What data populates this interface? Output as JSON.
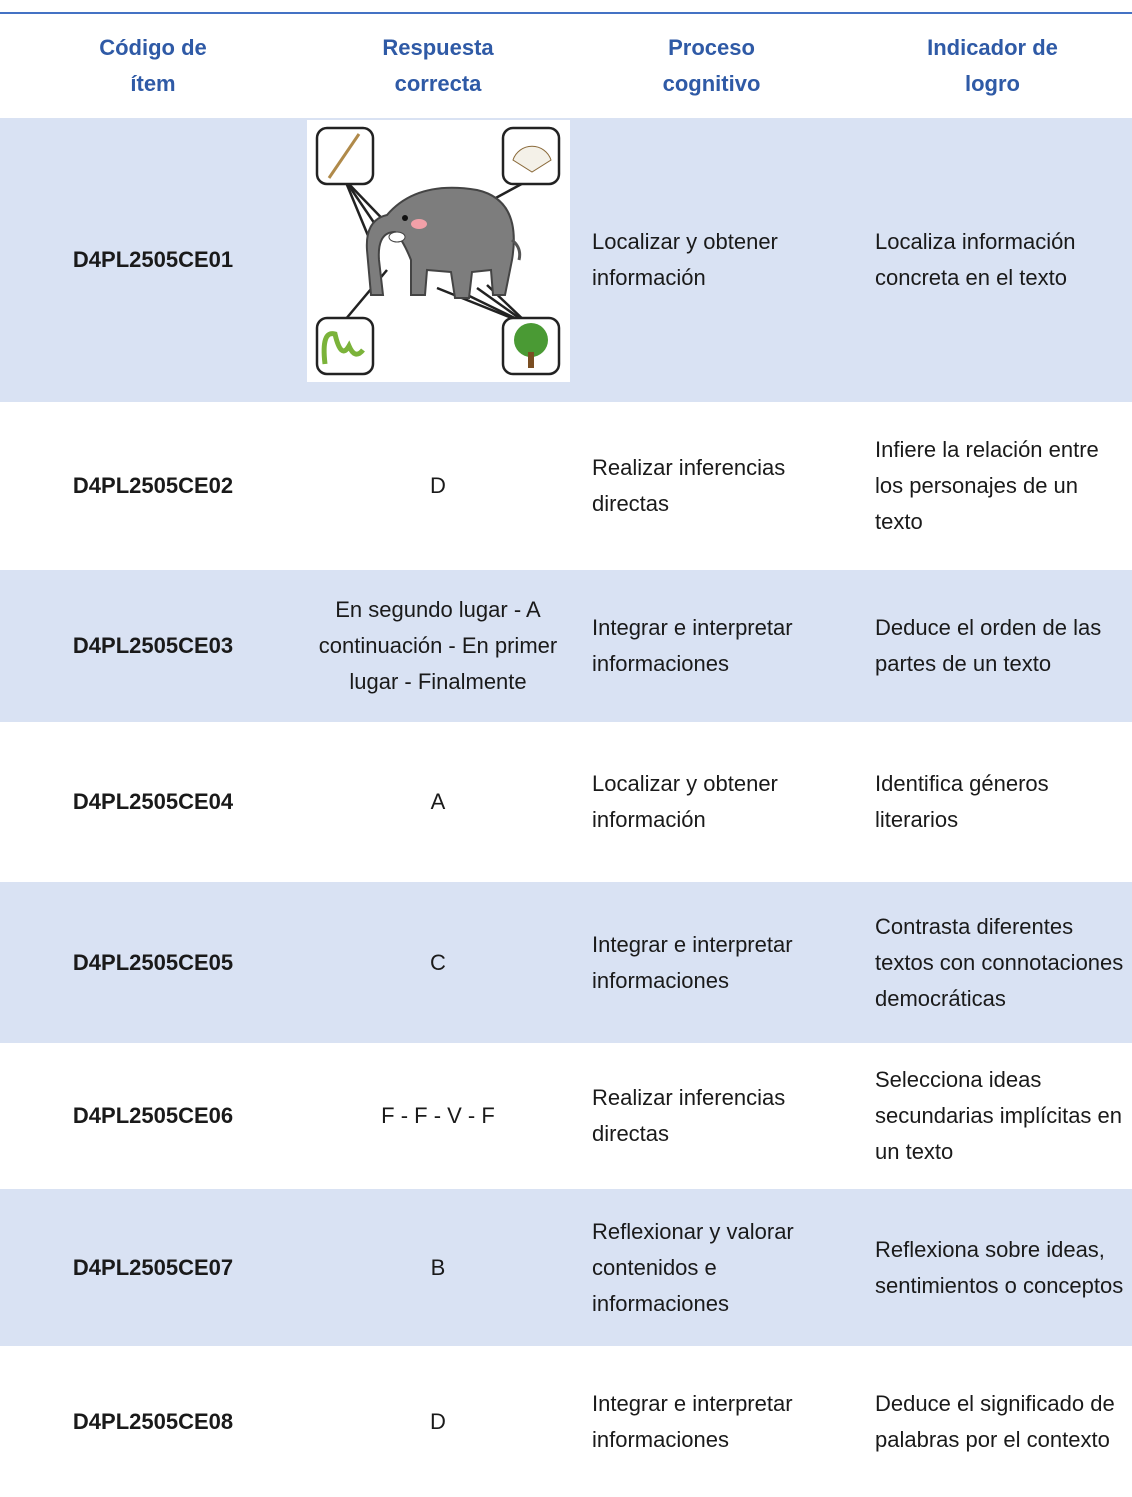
{
  "header": {
    "columns": [
      "Código de ítem",
      "Respuesta correcta",
      "Proceso cognitivo",
      "Indicador de logro"
    ]
  },
  "table": {
    "rows": [
      {
        "code": "D4PL2505CE01",
        "process": "Localizar y obtener información",
        "indicator": "Localiza información concreta en el texto"
      },
      {
        "code": "D4PL2505CE02",
        "answer": "D",
        "process": "Realizar inferencias directas",
        "indicator": "Infiere la relación entre los personajes de un texto"
      },
      {
        "code": "D4PL2505CE03",
        "answer": "En segundo lugar - A continuación - En primer lugar - Finalmente",
        "process": "Integrar e interpretar informaciones",
        "indicator": "Deduce el orden de las partes de un texto"
      },
      {
        "code": "D4PL2505CE04",
        "answer": "A",
        "process": "Localizar y obtener información",
        "indicator": "Identifica géneros literarios"
      },
      {
        "code": "D4PL2505CE05",
        "answer": "C",
        "process": "Integrar e interpretar informaciones",
        "indicator": "Contrasta diferentes textos con connotaciones democráticas"
      },
      {
        "code": "D4PL2505CE06",
        "answer": "F - F - V - F",
        "process": "Realizar inferencias directas",
        "indicator": "Selecciona ideas secundarias implícitas en un texto"
      },
      {
        "code": "D4PL2505CE07",
        "answer": "B",
        "process": "Reflexionar y valorar contenidos e informaciones",
        "indicator": "Reflexiona sobre ideas, sentimientos o conceptos"
      },
      {
        "code": "D4PL2505CE08",
        "answer": "D",
        "process": "Integrar e interpretar informaciones",
        "indicator": "Deduce el significado de palabras por el contexto"
      }
    ]
  }
}
